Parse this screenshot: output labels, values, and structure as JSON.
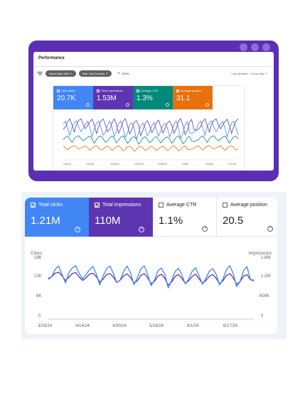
{
  "top_window": {
    "title": "Performance",
    "filters": [
      "Search type: Web",
      "Date: Last 3 months"
    ],
    "new_label": "NEW",
    "updated": "Last updated: 7 hours ago",
    "metrics": [
      {
        "label": "Total clicks",
        "value": "20.7K",
        "color": "#4285f4"
      },
      {
        "label": "Total impressions",
        "value": "1.53M",
        "color": "#5e35b1"
      },
      {
        "label": "Average CTR",
        "value": "1.3%",
        "color": "#00897b"
      },
      {
        "label": "Average position",
        "value": "31.1",
        "color": "#e8710a"
      }
    ],
    "dates": [
      "1/16/19",
      "1/16/19",
      "11/20/19",
      "12/10/19",
      "12/20/19",
      "1/3/20",
      "1/16/20",
      "1/27/20"
    ]
  },
  "bottom_card": {
    "metrics": [
      {
        "label": "Total clicks",
        "value": "1.21M",
        "checked": true,
        "color": "#4285f4"
      },
      {
        "label": "Total impressions",
        "value": "110M",
        "checked": true,
        "color": "#5e35b1"
      },
      {
        "label": "Average CTR",
        "value": "1.1%",
        "checked": false
      },
      {
        "label": "Average position",
        "value": "20.5",
        "checked": false
      }
    ],
    "help_glyph": "?",
    "chart_data": {
      "type": "line",
      "ylabel": "Clicks",
      "y2label": "Impressions",
      "yticks": [
        "18K",
        "12K",
        "6K",
        "0"
      ],
      "y2ticks": [
        "1.8M",
        "1.2M",
        "600K",
        "0"
      ],
      "xticks": [
        "3/29/24",
        "4/14/24",
        "4/30/24",
        "5/16/24",
        "6/1/24",
        "6/17/24"
      ],
      "ylim": [
        0,
        18000
      ],
      "y2lim": [
        0,
        1800000
      ],
      "series": [
        {
          "name": "Total clicks",
          "color": "#4285f4",
          "values": [
            12100,
            13000,
            15200,
            16200,
            13600,
            11000,
            14200,
            15600,
            16300,
            14000,
            12300,
            13600,
            15100,
            16100,
            13800,
            10400,
            13200,
            15400,
            16200,
            13900,
            11100,
            12000,
            14600,
            16200,
            14100,
            10500,
            12600,
            15300,
            16300,
            13600,
            10200,
            11900,
            14700,
            15600,
            13700,
            9500,
            11800,
            14500,
            15500,
            13500,
            10700,
            12300,
            14600,
            15700,
            13300,
            10600,
            12500,
            14600,
            15400,
            13700,
            10400,
            12200,
            15100,
            16300,
            13800,
            9900,
            11500,
            14800,
            16000,
            12100,
            11600
          ]
        },
        {
          "name": "Total impressions",
          "color": "#5e35b1",
          "values": [
            1240000,
            1300000,
            1400000,
            1430000,
            1320000,
            1180000,
            1280000,
            1390000,
            1420000,
            1290000,
            1180000,
            1260000,
            1370000,
            1400000,
            1300000,
            1130000,
            1220000,
            1360000,
            1390000,
            1280000,
            1120000,
            1190000,
            1320000,
            1380000,
            1270000,
            1100000,
            1170000,
            1330000,
            1390000,
            1260000,
            1080000,
            1150000,
            1310000,
            1370000,
            1250000,
            1040000,
            1130000,
            1300000,
            1360000,
            1240000,
            1090000,
            1170000,
            1300000,
            1370000,
            1230000,
            1090000,
            1180000,
            1310000,
            1360000,
            1250000,
            1080000,
            1170000,
            1330000,
            1390000,
            1260000,
            1060000,
            1150000,
            1310000,
            1360000,
            1200000,
            1190000
          ]
        }
      ]
    }
  }
}
